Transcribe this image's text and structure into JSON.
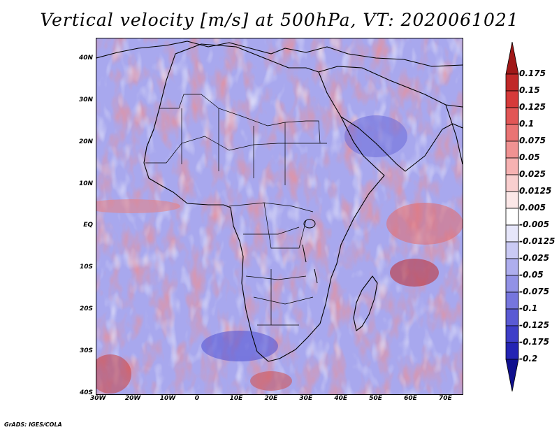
{
  "title": "Vertical velocity [m/s] at 500hPa, VT: 2020061021",
  "footer": "GrADS: IGES/COLA",
  "map": {
    "region": "Africa",
    "lon_range": [
      -30,
      75
    ],
    "lat_range": [
      -40,
      45
    ],
    "lat_ticks": [
      "40N",
      "30N",
      "20N",
      "10N",
      "EQ",
      "10S",
      "20S",
      "30S",
      "40S"
    ],
    "lon_ticks": [
      "30W",
      "20W",
      "10W",
      "0",
      "10E",
      "20E",
      "30E",
      "40E",
      "50E",
      "60E",
      "70E"
    ]
  },
  "colorbar": {
    "labels": [
      "0.175",
      "0.15",
      "0.125",
      "0.1",
      "0.075",
      "0.05",
      "0.025",
      "0.0125",
      "0.005",
      "-0.005",
      "-0.0125",
      "-0.025",
      "-0.05",
      "-0.075",
      "-0.1",
      "-0.125",
      "-0.175",
      "-0.2"
    ],
    "colors": [
      "#a01818",
      "#c02828",
      "#d63a3a",
      "#e25656",
      "#ea7474",
      "#f09292",
      "#f6b2b2",
      "#f9cfcf",
      "#fce8e8",
      "#ffffff",
      "#e6e6fa",
      "#cacaf4",
      "#aeaeee",
      "#9292e6",
      "#7676de",
      "#5a5ad4",
      "#3e3ec8",
      "#2424b4",
      "#10108e"
    ]
  },
  "legend_colors": {
    "sinking": "#5a5ae6",
    "rising": "#e05050",
    "coast": "#000000"
  }
}
